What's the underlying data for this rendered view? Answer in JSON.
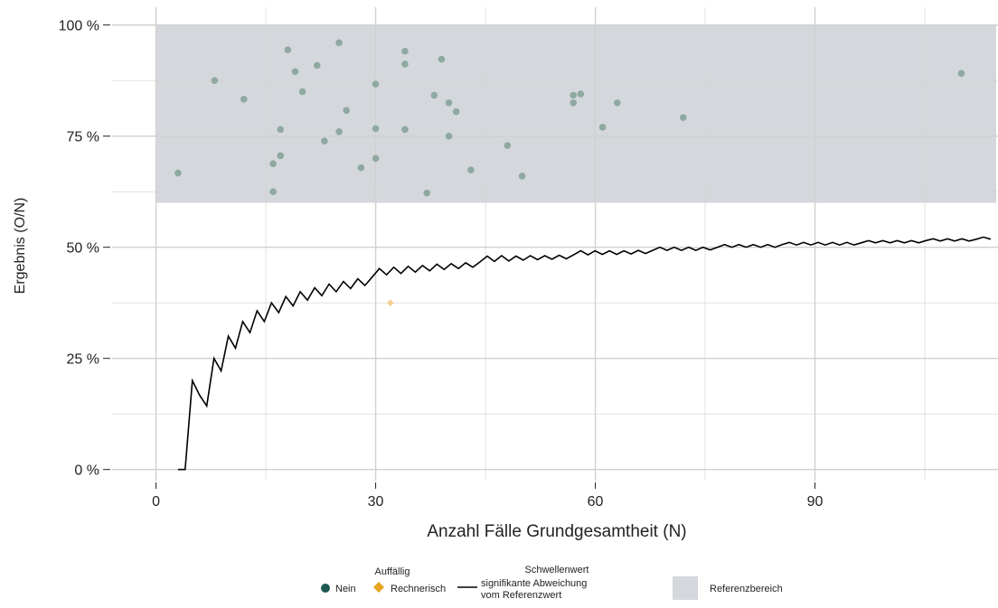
{
  "chart_data": {
    "type": "scatter",
    "xlabel": "Anzahl Fälle Grundgesamtheit (N)",
    "ylabel": "Ergebnis (O/N)",
    "xlim": [
      -6,
      115
    ],
    "ylim": [
      -2.5,
      104
    ],
    "x_ticks": [
      0,
      30,
      60,
      90
    ],
    "x_tick_labels": [
      "0",
      "30",
      "60",
      "90"
    ],
    "y_ticks": [
      0,
      25,
      50,
      75,
      100
    ],
    "y_tick_labels": [
      "0 %",
      "25 %",
      "50 %",
      "75 %",
      "100 %"
    ],
    "grid": true,
    "reference_range": {
      "y_min": 60,
      "y_max": 100,
      "label": "Referenzbereich",
      "color": "#d4d8dc"
    },
    "legend": {
      "placement": "bottom",
      "group_title": "Auffällig",
      "items": [
        {
          "label": "Nein",
          "color": "#1e5a52",
          "shape": "circle"
        },
        {
          "label": "Rechnerisch",
          "color": "#e6a522",
          "shape": "diamond"
        }
      ],
      "threshold_title": "Schwellenwert",
      "threshold_lines": [
        "signifikante Abweichung",
        "vom Referenzwert"
      ],
      "reference_label": "Referenzbereich"
    },
    "colors": {
      "nein": "#8fa9a0",
      "rechnerisch": "#f2cf8f",
      "threshold": "#000000",
      "grid": "#d0d0d0"
    },
    "series": [
      {
        "name": "Nein",
        "points": [
          [
            3,
            66.7
          ],
          [
            8,
            87.5
          ],
          [
            12,
            83.3
          ],
          [
            16,
            62.5
          ],
          [
            16,
            68.8
          ],
          [
            17,
            70.6
          ],
          [
            17,
            76.5
          ],
          [
            18,
            94.4
          ],
          [
            19,
            89.5
          ],
          [
            20,
            85
          ],
          [
            22,
            90.9
          ],
          [
            23,
            73.9
          ],
          [
            25,
            76
          ],
          [
            25,
            96
          ],
          [
            26,
            80.8
          ],
          [
            28,
            67.9
          ],
          [
            30,
            70
          ],
          [
            30,
            76.7
          ],
          [
            30,
            86.7
          ],
          [
            34,
            76.5
          ],
          [
            34,
            91.2
          ],
          [
            34,
            94.1
          ],
          [
            37,
            62.2
          ],
          [
            38,
            84.2
          ],
          [
            39,
            92.3
          ],
          [
            40,
            75
          ],
          [
            40,
            82.5
          ],
          [
            41,
            80.5
          ],
          [
            43,
            67.4
          ],
          [
            48,
            72.9
          ],
          [
            50,
            66
          ],
          [
            57,
            82.5
          ],
          [
            57,
            84.2
          ],
          [
            58,
            84.5
          ],
          [
            61,
            77
          ],
          [
            63,
            82.5
          ],
          [
            72,
            79.2
          ],
          [
            110,
            89.1
          ]
        ]
      },
      {
        "name": "Rechnerisch",
        "points": [
          [
            32,
            37.5
          ]
        ]
      }
    ],
    "threshold_line": {
      "name": "Schwellenwert signifikante Abweichung vom Referenzwert",
      "x_start": 3,
      "x_end": 114,
      "values": [
        0,
        0,
        20,
        16.7,
        14.3,
        25,
        22.2,
        30,
        27.3,
        33.3,
        30.8,
        35.7,
        33.3,
        37.5,
        35.3,
        38.9,
        36.8,
        40,
        38.1,
        40.9,
        39.1,
        41.7,
        40,
        42.3,
        40.7,
        42.9,
        41.4,
        43.3,
        45.2,
        43.8,
        45.5,
        44.1,
        45.7,
        44.4,
        45.9,
        44.7,
        46.2,
        45,
        46.3,
        45.2,
        46.5,
        45.5,
        46.7,
        48,
        46.8,
        48.1,
        46.9,
        48,
        47.1,
        48.1,
        47.2,
        48.1,
        47.3,
        48.2,
        47.4,
        48.3,
        49.2,
        48.3,
        49.2,
        48.4,
        49.2,
        48.4,
        49.2,
        48.5,
        49.3,
        48.6,
        49.3,
        50,
        49.3,
        50,
        49.3,
        50,
        49.3,
        50,
        49.4,
        50,
        50.6,
        50,
        50.6,
        50,
        50.6,
        50,
        50.6,
        50,
        50.6,
        51.1,
        50.5,
        51.1,
        50.5,
        51.1,
        50.5,
        51.1,
        50.5,
        51.1,
        50.5,
        51,
        51.5,
        51,
        51.5,
        51,
        51.5,
        51,
        51.5,
        51,
        51.5,
        51.9,
        51.4,
        51.9,
        51.4,
        51.9,
        51.4,
        51.8,
        52.3,
        51.8
      ]
    }
  }
}
